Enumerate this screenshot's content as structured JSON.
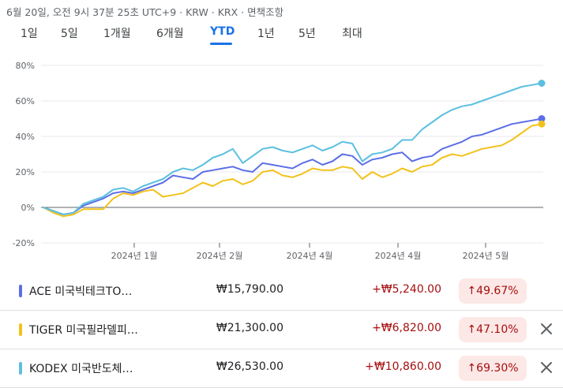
{
  "header": {
    "subtitle": "6월 20일, 오전 9시 37분 25초 UTC+9 · KRW · KRX · 면책조항"
  },
  "tabs": [
    {
      "label": "1일",
      "active": false
    },
    {
      "label": "5일",
      "active": false
    },
    {
      "label": "1개월",
      "active": false
    },
    {
      "label": "6개월",
      "active": false
    },
    {
      "label": "YTD",
      "active": true
    },
    {
      "label": "1년",
      "active": false
    },
    {
      "label": "5년",
      "active": false
    },
    {
      "label": "최대",
      "active": false
    }
  ],
  "chart_data": {
    "type": "line",
    "y_ticks": [
      "80%",
      "60%",
      "40%",
      "20%",
      "0%",
      "-20%"
    ],
    "ylim": [
      -20,
      80
    ],
    "x_ticks": [
      "2024년 1월",
      "2024년 2월",
      "2024년 4월",
      "2024년 4월",
      "2024년 5월"
    ],
    "grid": true,
    "series": [
      {
        "name": "ACE 미국빅테크TO…",
        "color": "#5c6fe6",
        "values": [
          0,
          -2,
          -4,
          -3,
          1,
          3,
          5,
          8,
          9,
          8,
          10,
          12,
          14,
          18,
          17,
          16,
          20,
          21,
          22,
          23,
          21,
          20,
          25,
          24,
          23,
          22,
          25,
          27,
          24,
          26,
          30,
          29,
          24,
          27,
          28,
          30,
          31,
          26,
          28,
          29,
          33,
          35,
          37,
          40,
          41,
          43,
          45,
          47,
          48,
          49,
          50
        ]
      },
      {
        "name": "TIGER 미국필라델피…",
        "color": "#f2c21b",
        "values": [
          0,
          -3,
          -5,
          -4,
          -1,
          -1,
          -1,
          5,
          8,
          7,
          9,
          10,
          6,
          7,
          8,
          11,
          14,
          12,
          15,
          16,
          13,
          15,
          20,
          21,
          18,
          17,
          19,
          22,
          21,
          21,
          23,
          22,
          16,
          20,
          17,
          19,
          22,
          20,
          23,
          24,
          28,
          30,
          29,
          31,
          33,
          34,
          35,
          38,
          42,
          46,
          47
        ]
      },
      {
        "name": "KODEX 미국반도체…",
        "color": "#5cbfe0",
        "values": [
          0,
          -2,
          -4,
          -3,
          2,
          4,
          6,
          10,
          11,
          9,
          12,
          14,
          16,
          20,
          22,
          21,
          24,
          28,
          30,
          33,
          25,
          29,
          33,
          34,
          32,
          31,
          33,
          35,
          32,
          34,
          37,
          36,
          26,
          30,
          31,
          33,
          38,
          38,
          44,
          48,
          52,
          55,
          57,
          58,
          60,
          62,
          64,
          66,
          68,
          69,
          70
        ]
      }
    ]
  },
  "holdings": [
    {
      "swatch": "#5c6fe6",
      "name": "ACE 미국빅테크TO…",
      "price": "₩15,790.00",
      "change": "+₩5,240.00",
      "pct": "49.67%",
      "removable": false
    },
    {
      "swatch": "#f2c21b",
      "name": "TIGER 미국필라델피…",
      "price": "₩21,300.00",
      "change": "+₩6,820.00",
      "pct": "47.10%",
      "removable": true
    },
    {
      "swatch": "#5cbfe0",
      "name": "KODEX 미국반도체…",
      "price": "₩26,530.00",
      "change": "+₩10,860.00",
      "pct": "69.30%",
      "removable": true
    }
  ],
  "icons": {
    "up_arrow": "↑",
    "close": "close-icon"
  }
}
